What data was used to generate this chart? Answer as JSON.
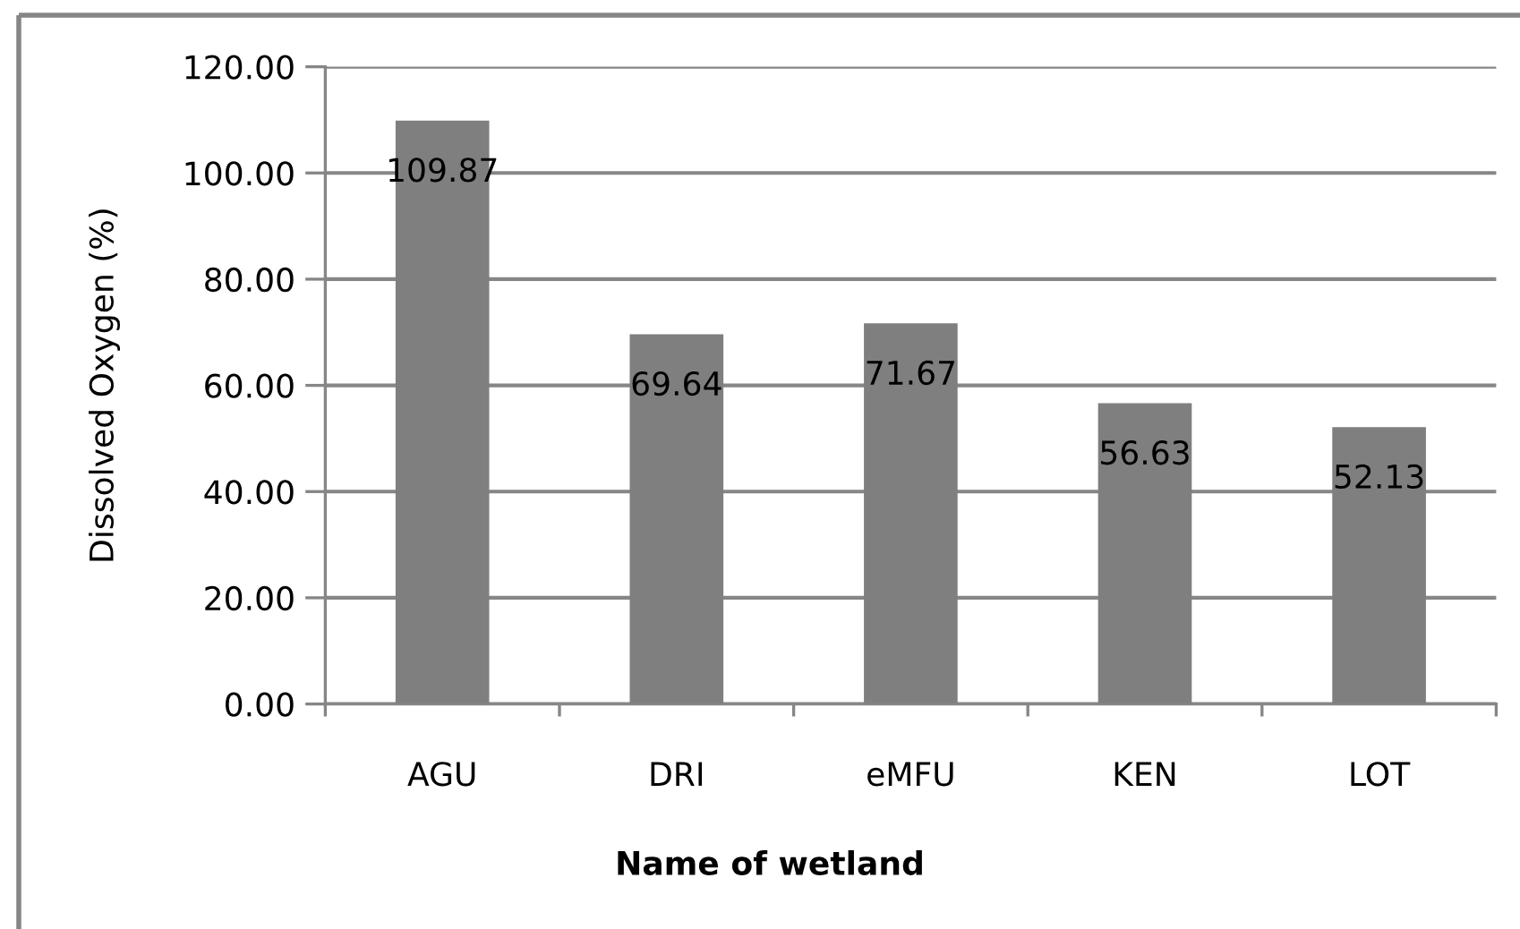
{
  "chart_data": {
    "type": "bar",
    "xlabel": "Name of wetland",
    "ylabel": "Dissolved Oxygen (%)",
    "categories": [
      "AGU",
      "DRI",
      "eMFU",
      "KEN",
      "LOT"
    ],
    "values": [
      109.87,
      69.64,
      71.67,
      56.63,
      52.13
    ],
    "color": "#7f7f7f",
    "data_labels": true,
    "ylim": [
      0,
      120
    ],
    "yticks": [
      {
        "value": 0,
        "label": "0.00"
      },
      {
        "value": 20,
        "label": "20.00"
      },
      {
        "value": 40,
        "label": "40.00"
      },
      {
        "value": 60,
        "label": "60.00"
      },
      {
        "value": 80,
        "label": "80.00"
      },
      {
        "value": 100,
        "label": "100.00"
      },
      {
        "value": 120,
        "label": "120.00"
      }
    ],
    "grid": "y"
  }
}
